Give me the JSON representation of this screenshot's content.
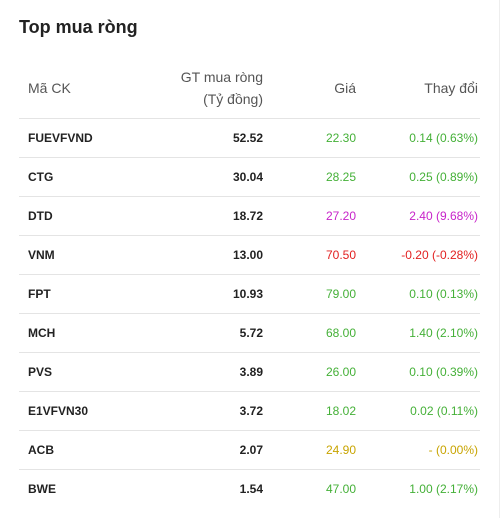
{
  "widget": {
    "title": "Top mua ròng"
  },
  "table": {
    "headers": {
      "code": "Mã CK",
      "value_line1": "GT mua ròng",
      "value_line2": "(Tỷ đồng)",
      "price": "Giá",
      "change": "Thay đổi"
    },
    "rows": [
      {
        "code": "FUEVFVND",
        "value": "52.52",
        "price": "22.30",
        "change": "0.14 (0.63%)",
        "status": "up"
      },
      {
        "code": "CTG",
        "value": "30.04",
        "price": "28.25",
        "change": "0.25 (0.89%)",
        "status": "up"
      },
      {
        "code": "DTD",
        "value": "18.72",
        "price": "27.20",
        "change": "2.40 (9.68%)",
        "status": "ceil"
      },
      {
        "code": "VNM",
        "value": "13.00",
        "price": "70.50",
        "change": "-0.20 (-0.28%)",
        "status": "down"
      },
      {
        "code": "FPT",
        "value": "10.93",
        "price": "79.00",
        "change": "0.10 (0.13%)",
        "status": "up"
      },
      {
        "code": "MCH",
        "value": "5.72",
        "price": "68.00",
        "change": "1.40 (2.10%)",
        "status": "up"
      },
      {
        "code": "PVS",
        "value": "3.89",
        "price": "26.00",
        "change": "0.10 (0.39%)",
        "status": "up"
      },
      {
        "code": "E1VFVN30",
        "value": "3.72",
        "price": "18.02",
        "change": "0.02 (0.11%)",
        "status": "up"
      },
      {
        "code": "ACB",
        "value": "2.07",
        "price": "24.90",
        "change": "- (0.00%)",
        "status": "ref"
      },
      {
        "code": "BWE",
        "value": "1.54",
        "price": "47.00",
        "change": "1.00 (2.17%)",
        "status": "up"
      }
    ]
  },
  "colors": {
    "up": "#44b037",
    "down": "#e22020",
    "ceil": "#c724c9",
    "ref": "#c8a400"
  }
}
